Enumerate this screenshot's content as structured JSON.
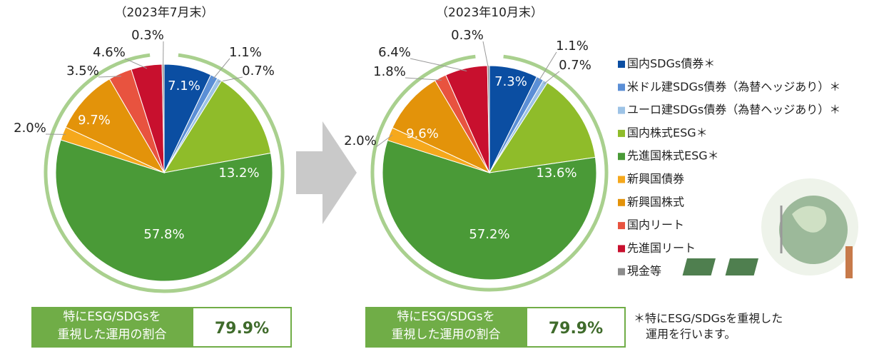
{
  "chart_data": [
    {
      "type": "pie",
      "title": "（2023年7月末）",
      "categories": [
        "国内SDGs債券＊",
        "米ドル建SDGs債券（為替ヘッジあり）＊",
        "ユーロ建SDGs債券（為替ヘッジあり）＊",
        "国内株式ESG＊",
        "先進国株式ESG＊",
        "新興国債券",
        "新興国株式",
        "国内リート",
        "先進国リート",
        "現金等"
      ],
      "values": [
        7.1,
        1.1,
        0.7,
        13.2,
        57.8,
        2.0,
        9.7,
        3.5,
        4.6,
        0.3
      ],
      "value_labels": [
        "7.1%",
        "1.1%",
        "0.7%",
        "13.2%",
        "57.8%",
        "2.0%",
        "9.7%",
        "3.5%",
        "4.6%",
        "0.3%"
      ],
      "colors": [
        "#0b4ea2",
        "#5b8fd6",
        "#9dc3e6",
        "#8fbc2a",
        "#4a9a37",
        "#f5a81c",
        "#e3930a",
        "#e8533f",
        "#c8102e",
        "#8c8c8c"
      ]
    },
    {
      "type": "pie",
      "title": "（2023年10月末）",
      "categories": [
        "国内SDGs債券＊",
        "米ドル建SDGs債券（為替ヘッジあり）＊",
        "ユーロ建SDGs債券（為替ヘッジあり）＊",
        "国内株式ESG＊",
        "先進国株式ESG＊",
        "新興国債券",
        "新興国株式",
        "国内リート",
        "先進国リート",
        "現金等"
      ],
      "values": [
        7.3,
        1.1,
        0.7,
        13.6,
        57.2,
        2.0,
        9.6,
        1.8,
        6.4,
        0.3
      ],
      "value_labels": [
        "7.3%",
        "1.1%",
        "0.7%",
        "13.6%",
        "57.2%",
        "2.0%",
        "9.6%",
        "1.8%",
        "6.4%",
        "0.3%"
      ],
      "colors": [
        "#0b4ea2",
        "#5b8fd6",
        "#9dc3e6",
        "#8fbc2a",
        "#4a9a37",
        "#f5a81c",
        "#e3930a",
        "#e8533f",
        "#c8102e",
        "#8c8c8c"
      ]
    }
  ],
  "summary": [
    {
      "label_lines": [
        "特にESG/SDGsを",
        "重視した運用の割合"
      ],
      "value": "79.9%"
    },
    {
      "label_lines": [
        "特にESG/SDGsを",
        "重視した運用の割合"
      ],
      "value": "79.9%"
    }
  ],
  "note_lines": [
    "＊特にESG/SDGsを重視した",
    "運用を行います。"
  ]
}
